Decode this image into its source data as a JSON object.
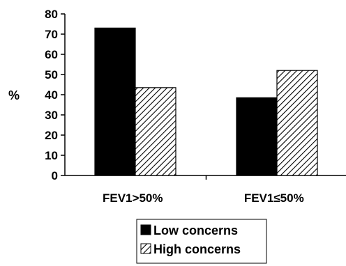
{
  "chart_data": {
    "type": "bar",
    "ylabel": "%",
    "xlabel": "",
    "ylim": [
      0,
      80
    ],
    "yticks": [
      0,
      10,
      20,
      30,
      40,
      50,
      60,
      70,
      80
    ],
    "categories": [
      "FEV1>50%",
      "FEV1≤50%"
    ],
    "series": [
      {
        "name": "Low concerns",
        "values": [
          73,
          38.5
        ],
        "fill": "#000000",
        "pattern": "solid"
      },
      {
        "name": "High concerns",
        "values": [
          43.5,
          52
        ],
        "fill": "#ffffff",
        "pattern": "diagonal-hatch"
      }
    ],
    "grid": false,
    "legend_position": "bottom"
  }
}
